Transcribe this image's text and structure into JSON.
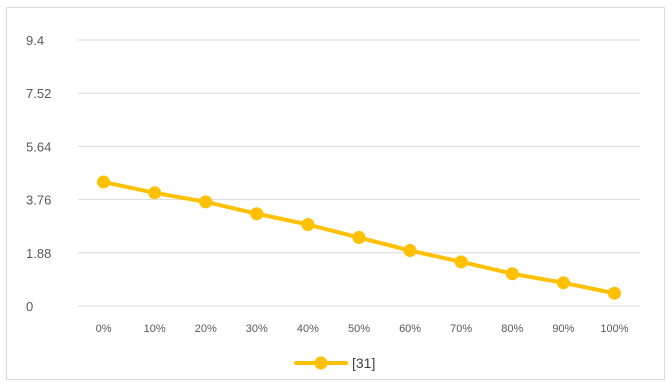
{
  "chart_data": {
    "type": "line",
    "title": "",
    "xlabel": "",
    "ylabel": "",
    "categories": [
      "0%",
      "10%",
      "20%",
      "30%",
      "40%",
      "50%",
      "60%",
      "70%",
      "80%",
      "90%",
      "100%"
    ],
    "y_ticks": [
      "0",
      "1.88",
      "3.76",
      "5.64",
      "7.52",
      "9.4"
    ],
    "ylim": [
      0,
      9.4
    ],
    "grid": true,
    "legend_position": "bottom",
    "series": [
      {
        "name": "[31]",
        "color": "#ffc000",
        "values": [
          4.38,
          4.0,
          3.68,
          3.26,
          2.88,
          2.42,
          1.96,
          1.56,
          1.14,
          0.82,
          0.45
        ]
      }
    ]
  }
}
